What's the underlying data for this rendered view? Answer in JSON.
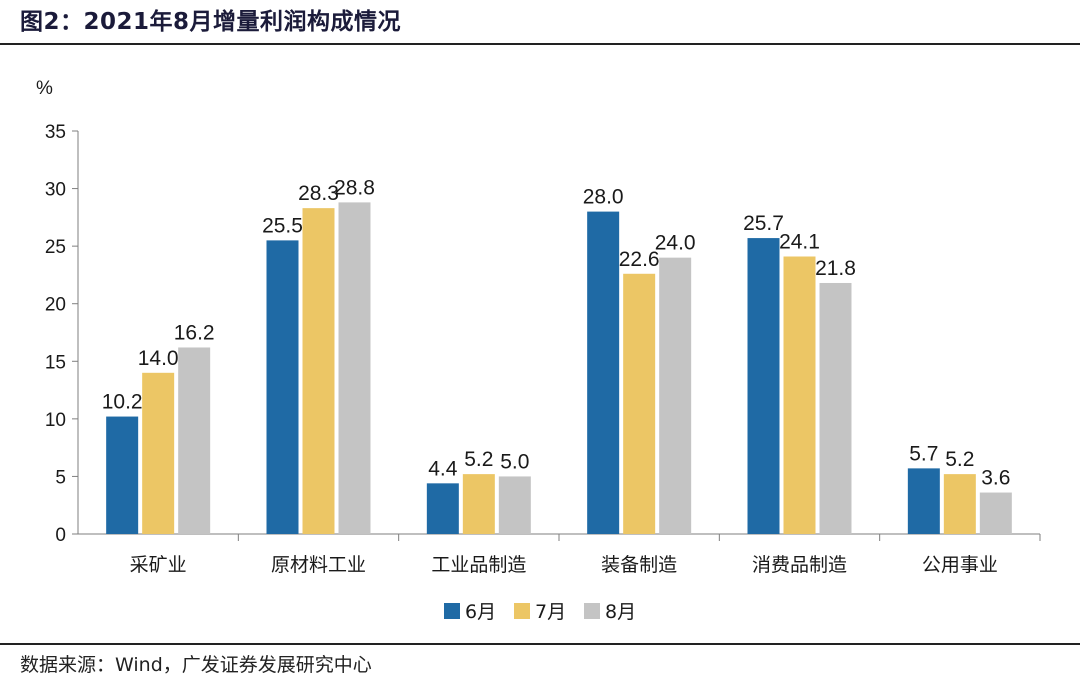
{
  "title": "图2：2021年8月增量利润构成情况",
  "source": "数据来源：Wind，广发证券发展研究中心",
  "chart_data": {
    "type": "bar",
    "title": "图2：2021年8月增量利润构成情况",
    "ylabel": "%",
    "xlabel": "",
    "ylim": [
      0,
      35
    ],
    "yticks": [
      0,
      5,
      10,
      15,
      20,
      25,
      30,
      35
    ],
    "grid": false,
    "legend_position": "bottom-center",
    "categories": [
      "采矿业",
      "原材料工业",
      "工业品制造",
      "装备制造",
      "消费品制造",
      "公用事业"
    ],
    "series": [
      {
        "name": "6月",
        "color": "#1f6aa5",
        "values": [
          10.2,
          25.5,
          4.4,
          28.0,
          25.7,
          5.7
        ],
        "labels": [
          "10.2",
          "25.5",
          "4.4",
          "28.0",
          "25.7",
          "5.7"
        ]
      },
      {
        "name": "7月",
        "color": "#ecc665",
        "values": [
          14.0,
          28.3,
          5.2,
          22.6,
          24.1,
          5.2
        ],
        "labels": [
          "14.0",
          "28.3",
          "5.2",
          "22.6",
          "24.1",
          "5.2"
        ]
      },
      {
        "name": "8月",
        "color": "#c4c4c4",
        "values": [
          16.2,
          28.8,
          5.0,
          24.0,
          21.8,
          3.6
        ],
        "labels": [
          "16.2",
          "28.8",
          "5.0",
          "24.0",
          "21.8",
          "3.6"
        ]
      }
    ]
  }
}
